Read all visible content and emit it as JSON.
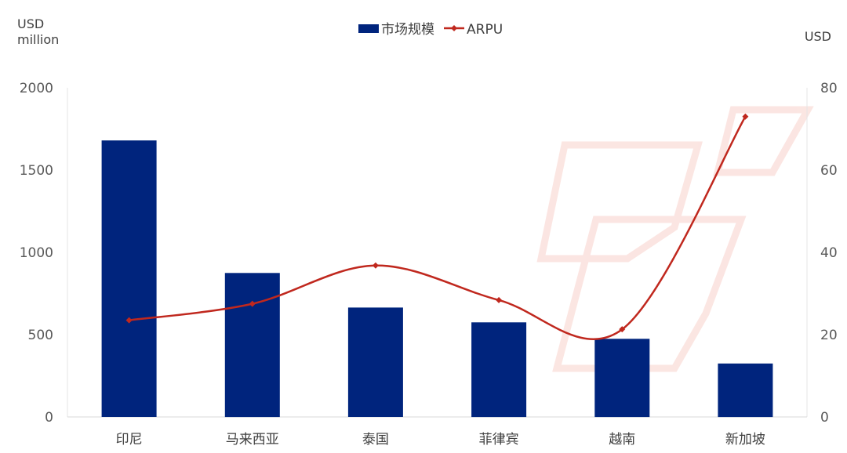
{
  "chart_data": {
    "type": "bar",
    "categories": [
      "印尼",
      "马来西亚",
      "泰国",
      "菲律宾",
      "越南",
      "新加坡"
    ],
    "series": [
      {
        "name": "市场规模",
        "type": "bar",
        "axis": "left",
        "color": "#00247D",
        "values": [
          1680,
          875,
          665,
          575,
          475,
          325
        ]
      },
      {
        "name": "ARPU",
        "type": "line",
        "axis": "right",
        "color": "#C0281E",
        "values": [
          23.5,
          27.5,
          36.8,
          28.4,
          21.3,
          73.0
        ]
      }
    ],
    "y_left": {
      "label_line1": "USD",
      "label_line2": "million",
      "range": [
        0,
        2000
      ],
      "ticks": [
        "0",
        "500",
        "1000",
        "1500",
        "2000"
      ]
    },
    "y_right": {
      "label": "USD",
      "range": [
        0,
        80
      ],
      "ticks": [
        "0",
        "20",
        "40",
        "60",
        "80"
      ]
    },
    "legend_position": "top-center",
    "grid": false
  }
}
